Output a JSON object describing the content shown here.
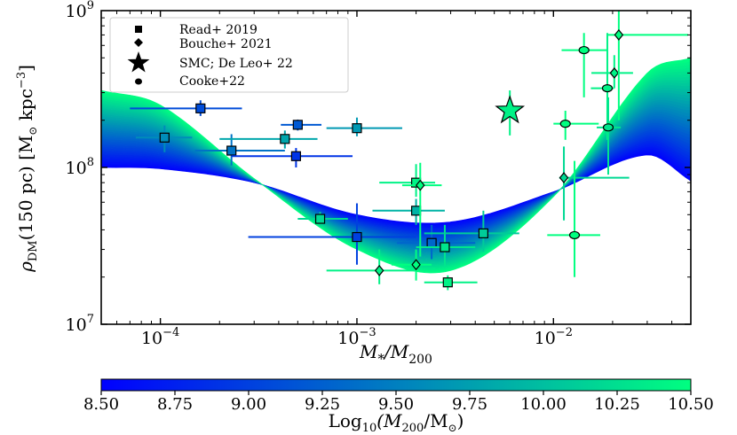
{
  "chart_data": {
    "type": "scatter",
    "xscale": "log",
    "yscale": "log",
    "xlim": [
      5e-05,
      0.05
    ],
    "ylim": [
      10000000,
      1000000000
    ],
    "xlabel_parts": {
      "main": "M",
      "sub1": "*",
      "slash": "/M",
      "sub2": "200"
    },
    "ylabel_parts": {
      "rho": "ρ",
      "sub": "DM",
      "main": "(150 pc) [M",
      "sun": "⊙",
      "rest": " kpc",
      "exp": "−3",
      "end": "]"
    },
    "x_ticks": [
      {
        "value": 0.0001,
        "base": "10",
        "exp": "−4"
      },
      {
        "value": 0.001,
        "base": "10",
        "exp": "−3"
      },
      {
        "value": 0.01,
        "base": "10",
        "exp": "−2"
      }
    ],
    "y_ticks": [
      {
        "value": 10000000,
        "base": "10",
        "exp": "7"
      },
      {
        "value": 100000000,
        "base": "10",
        "exp": "8"
      },
      {
        "value": 1000000000,
        "base": "10",
        "exp": "9"
      }
    ],
    "legend": {
      "placement": "top-left",
      "entries": [
        {
          "marker": "square",
          "label": "Read+ 2019"
        },
        {
          "marker": "diamond",
          "label": "Bouche+ 2021"
        },
        {
          "marker": "star",
          "label": "SMC; De Leo+ 22"
        },
        {
          "marker": "ellipse",
          "label": "Cooke+22"
        }
      ]
    },
    "colorbar": {
      "range": [
        8.5,
        10.5
      ],
      "colors": [
        "#0000ff",
        "#00ff80"
      ],
      "ticks": [
        "8.50",
        "8.75",
        "9.00",
        "9.25",
        "9.50",
        "9.75",
        "10.00",
        "10.25",
        "10.50"
      ],
      "label_parts": {
        "main": "Log",
        "sub": "10",
        "mid": "(M",
        "sub2": "200",
        "rest": "/M",
        "sun": "⊙",
        "end": ")"
      }
    },
    "band": {
      "description_values_x": [
        5e-05,
        0.0001,
        0.0003,
        0.001,
        0.003,
        0.01,
        0.03,
        0.05
      ],
      "low_mass_curve": [
        100000000,
        98000000,
        80000000,
        50000000,
        45000000,
        70000000,
        120000000,
        82000000
      ],
      "high_mass_curve": [
        310000000,
        250000000,
        85000000,
        30000000,
        22000000,
        65000000,
        400000000,
        500000000
      ]
    },
    "series": [
      {
        "name": "Read+ 2019",
        "marker": "square",
        "points": [
          {
            "x": 0.000105,
            "y": 155000000,
            "xerr": [
              3e-05,
              4e-05
            ],
            "yerr": [
              30000000,
              30000000
            ],
            "logm": 9.6
          },
          {
            "x": 0.00016,
            "y": 238000000,
            "xerr": [
              9e-05,
              0.0001
            ],
            "yerr": [
              25000000,
              30000000
            ],
            "logm": 9.1
          },
          {
            "x": 0.00023,
            "y": 128000000,
            "xerr": [
              8e-05,
              0.0002
            ],
            "yerr": [
              25000000,
              35000000
            ],
            "logm": 9.4
          },
          {
            "x": 0.00043,
            "y": 152000000,
            "xerr": [
              0.00023,
              0.0002
            ],
            "yerr": [
              20000000,
              20000000
            ],
            "logm": 9.8
          },
          {
            "x": 0.00049,
            "y": 118000000,
            "xerr": [
              0.00026,
              0.00046
            ],
            "yerr": [
              18000000,
              15000000
            ],
            "logm": 8.9
          },
          {
            "x": 0.0005,
            "y": 187000000,
            "xerr": [
              9e-05,
              0.00016
            ],
            "yerr": [
              15000000,
              15000000
            ],
            "logm": 9.2
          },
          {
            "x": 0.001,
            "y": 178000000,
            "xerr": [
              0.0003,
              0.0007
            ],
            "yerr": [
              20000000,
              30000000
            ],
            "logm": 9.7
          },
          {
            "x": 0.00065,
            "y": 47000000,
            "xerr": [
              0.00015,
              0.00025
            ],
            "yerr": [
              5000000,
              5000000
            ],
            "logm": 10.2
          },
          {
            "x": 0.001,
            "y": 36000000,
            "xerr": [
              0.00072,
              0.001
            ],
            "yerr": [
              12000000,
              23000000
            ],
            "logm": 9.0
          },
          {
            "x": 0.002,
            "y": 80000000,
            "xerr": [
              0.0007,
              0.0005
            ],
            "yerr": [
              15000000,
              25000000
            ],
            "logm": 10.4
          },
          {
            "x": 0.002,
            "y": 53000000,
            "xerr": [
              0.0008,
              0.0008
            ],
            "yerr": [
              10000000,
              10000000
            ],
            "logm": 9.9
          },
          {
            "x": 0.0024,
            "y": 33000000,
            "xerr": [
              0.0008,
              0.0016
            ],
            "yerr": [
              7000000,
              10000000
            ],
            "logm": 9.3
          },
          {
            "x": 0.0028,
            "y": 31000000,
            "xerr": [
              0.0008,
              0.0012
            ],
            "yerr": [
              8000000,
              12000000
            ],
            "logm": 10.3
          },
          {
            "x": 0.0029,
            "y": 18500000,
            "xerr": [
              0.0007,
              0.0012
            ],
            "yerr": [
              2000000,
              2000000
            ],
            "logm": 10.4
          },
          {
            "x": 0.0044,
            "y": 38000000,
            "xerr": [
              0.0022,
              0.0023
            ],
            "yerr": [
              9000000,
              15000000
            ],
            "logm": 10.1
          }
        ]
      },
      {
        "name": "Bouche+ 2021",
        "marker": "diamond",
        "points": [
          {
            "x": 0.0013,
            "y": 22000000,
            "xerr": [
              0.0006,
              0.0007
            ],
            "yerr": [
              4000000,
              8000000
            ],
            "logm": 10.4
          },
          {
            "x": 0.002,
            "y": 24000000,
            "xerr": [
              0.0005,
              0.0004
            ],
            "yerr": [
              5000000,
              6000000
            ],
            "logm": 10.5
          },
          {
            "x": 0.0021,
            "y": 77000000,
            "xerr": [
              0.0004,
              0.0006
            ],
            "yerr": [
              50000000,
              30000000
            ],
            "logm": 10.5
          },
          {
            "x": 0.0113,
            "y": 86000000,
            "xerr": [
              0.0006,
              0.013
            ],
            "yerr": [
              40000000,
              50000000
            ],
            "logm": 10.2
          },
          {
            "x": 0.0204,
            "y": 400000000,
            "xerr": [
              0.0048,
              0.005
            ],
            "yerr": [
              80000000,
              120000000
            ],
            "logm": 10.4
          },
          {
            "x": 0.0215,
            "y": 700000000,
            "xerr": [
              0.0025,
              0.027
            ],
            "yerr": [
              500000000,
              300000000
            ],
            "logm": 10.5
          }
        ]
      },
      {
        "name": "SMC; De Leo+ 22",
        "marker": "star",
        "points": [
          {
            "x": 0.006,
            "y": 230000000,
            "xerr": [
              0,
              0
            ],
            "yerr": [
              70000000,
              80000000
            ],
            "logm": 10.4
          }
        ]
      },
      {
        "name": "Cooke+22",
        "marker": "ellipse",
        "points": [
          {
            "x": 0.0115,
            "y": 190000000,
            "xerr": [
              0.0015,
              0.0055
            ],
            "yerr": [
              40000000,
              40000000
            ],
            "logm": 10.5
          },
          {
            "x": 0.0128,
            "y": 37000000,
            "xerr": [
              0.0035,
              0.0045
            ],
            "yerr": [
              17000000,
              73000000
            ],
            "logm": 10.5
          },
          {
            "x": 0.0143,
            "y": 560000000,
            "xerr": [
              0.0033,
              0.0045
            ],
            "yerr": [
              280000000,
              160000000
            ],
            "logm": 10.5
          },
          {
            "x": 0.0188,
            "y": 320000000,
            "xerr": [
              0.0033,
              0.0015
            ],
            "yerr": [
              170000000,
              400000000
            ],
            "logm": 10.4
          },
          {
            "x": 0.019,
            "y": 180000000,
            "xerr": [
              0.0024,
              0.003
            ],
            "yerr": [
              90000000,
              100000000
            ],
            "logm": 10.3
          }
        ]
      }
    ]
  }
}
